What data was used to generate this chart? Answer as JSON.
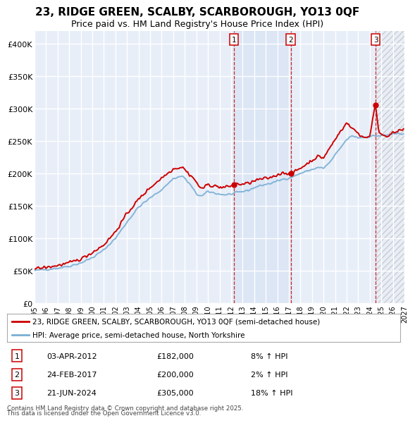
{
  "title": "23, RIDGE GREEN, SCALBY, SCARBOROUGH, YO13 0QF",
  "subtitle": "Price paid vs. HM Land Registry's House Price Index (HPI)",
  "ylim": [
    0,
    420000
  ],
  "yticks": [
    0,
    50000,
    100000,
    150000,
    200000,
    250000,
    300000,
    350000,
    400000
  ],
  "ytick_labels": [
    "£0",
    "£50K",
    "£100K",
    "£150K",
    "£200K",
    "£250K",
    "£300K",
    "£350K",
    "£400K"
  ],
  "background_color": "#ffffff",
  "plot_bg_color": "#e8eef8",
  "grid_color": "#ffffff",
  "legend_label_red": "23, RIDGE GREEN, SCALBY, SCARBOROUGH, YO13 0QF (semi-detached house)",
  "legend_label_blue": "HPI: Average price, semi-detached house, North Yorkshire",
  "red_color": "#cc0000",
  "blue_color": "#7aafd4",
  "sale_prices": [
    182000,
    200000,
    305000
  ],
  "sale_labels": [
    "1",
    "2",
    "3"
  ],
  "sale_hpi_pct": [
    "8% ↑ HPI",
    "2% ↑ HPI",
    "18% ↑ HPI"
  ],
  "sale_dates_display": [
    "03-APR-2012",
    "24-FEB-2017",
    "21-JUN-2024"
  ],
  "sale_prices_display": [
    "£182,000",
    "£200,000",
    "£305,000"
  ],
  "footnote1": "Contains HM Land Registry data © Crown copyright and database right 2025.",
  "footnote2": "This data is licensed under the Open Government Licence v3.0.",
  "title_fontsize": 11,
  "subtitle_fontsize": 9
}
